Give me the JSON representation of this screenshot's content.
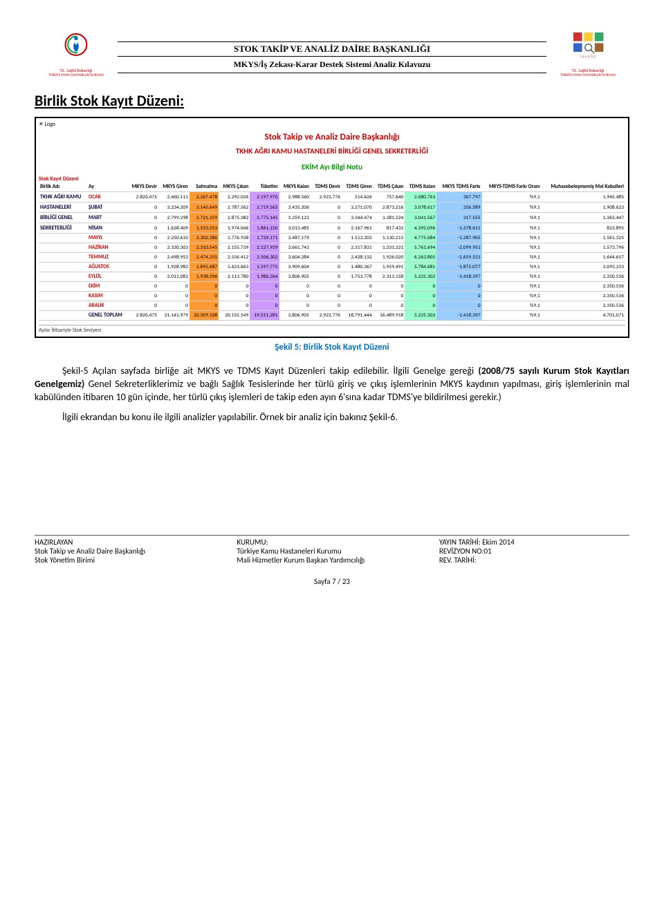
{
  "header": {
    "logo_org_tr": "T.C. Sağlık Bakanlığı",
    "logo_org_sub": "TÜRKİYE KAMU HASTANELERİ KURUMU",
    "line1": "STOK TAKİP VE ANALİZ DAİRE BAŞKANLIĞI",
    "line2": "MKYS/İş Zekası-Karar Destek Sistemi Analiz Kılavuzu"
  },
  "section": {
    "title": "Birlik Stok Kayıt Düzeni:"
  },
  "screenshot": {
    "xlogo": "✕  Logo",
    "title_red": "Stok Takip ve Analiz Daire Başkanlığı",
    "title_sub": "TKHK AĞRI KAMU HASTANELERİ BİRLİĞİ GENEL SEKRETERLİĞİ",
    "title_green": "EKİM Ayı Bilgi Notu",
    "side_label": "Stok Kayıt Düzeni",
    "unit_header": "Birlik Adı",
    "month_header": "Ay",
    "unit_name_lines": [
      "TKHK AĞRI KAMU",
      "HASTANELERİ",
      "BİRLİĞİ GENEL",
      "SEKRETERLİĞİ"
    ],
    "columns": [
      "MKYS Devir",
      "MKYS Giren",
      "Satınalma",
      "MKYS Çıkan",
      "Tüketim",
      "MKYS Kalan",
      "TDMS Devir",
      "TDMS Giren",
      "TDMS Çıkan",
      "TDMS Kalan",
      "MKYS TDMS Farkı",
      "MKYS-TDMS Farkı Oranı",
      "Muhasebeleşmemiş Mal Kabulleri"
    ],
    "highlight_cols": {
      "satinalma": "hl-orange",
      "tuketim": "hl-violet",
      "tdms_kalan": "hl-green",
      "fark": "hl-blue"
    },
    "rows": [
      {
        "month": "OCAK",
        "red": true,
        "cells": [
          "2.820.475",
          "2.460.111",
          "2.267.478",
          "2.292.026",
          "2.197.970",
          "2.988.560",
          "2.923.776",
          "514.626",
          "757.640",
          "2.680.763",
          "307.797",
          "%9,1",
          "1.945.485"
        ]
      },
      {
        "month": "ŞUBAT",
        "cells": [
          "0",
          "3.234.209",
          "3.145.649",
          "2.787.562",
          "2.719.565",
          "3.435.206",
          "0",
          "3.271.070",
          "2.873.216",
          "3.078.617",
          "356.589",
          "%9,1",
          "1.908.623"
        ]
      },
      {
        "month": "MART",
        "cells": [
          "0",
          "2.799.298",
          "2.721.259",
          "2.875.382",
          "2.775.145",
          "3.359.122",
          "0",
          "3.344.474",
          "3.381.524",
          "3.041.567",
          "317.555",
          "%9,1",
          "1.363.447"
        ]
      },
      {
        "month": "NİSAN",
        "cells": [
          "0",
          "1.628.409",
          "1.553.553",
          "1.974.046",
          "1.861.150",
          "3.013.485",
          "0",
          "2.167.961",
          "817.432",
          "4.392.096",
          "-1.378.611",
          "%9,1",
          "823.895"
        ]
      },
      {
        "month": "MAYIS",
        "red": true,
        "cells": [
          "0",
          "2.250.633",
          "2.202.286",
          "1.776.938",
          "1.739.171",
          "3.487.179",
          "0",
          "1.513.203",
          "1.130.215",
          "4.775.084",
          "-1.287.905",
          "%9,1",
          "1.561.325"
        ]
      },
      {
        "month": "HAZİRAN",
        "red": true,
        "cells": [
          "0",
          "2.330.303",
          "2.310.545",
          "2.155.739",
          "2.127.939",
          "3.661.743",
          "0",
          "2.317.831",
          "1.331.221",
          "5.761.694",
          "-2.099.951",
          "%9,1",
          "1.573.796"
        ]
      },
      {
        "month": "TEMMUZ",
        "red": true,
        "cells": [
          "0",
          "2.498.953",
          "2.474.255",
          "2.556.412",
          "2.506.302",
          "3.604.284",
          "0",
          "2.428.132",
          "1.926.020",
          "6.263.805",
          "-2.659.521",
          "%9,1",
          "1.644.617"
        ]
      },
      {
        "month": "AĞUSTOS",
        "red": true,
        "cells": [
          "0",
          "1.928.983",
          "1.895.687",
          "1.623.663",
          "1.597.775",
          "3.909.604",
          "0",
          "1.480.367",
          "1.959.491",
          "5.784.681",
          "-1.875.077",
          "%9,1",
          "2.093.233"
        ]
      },
      {
        "month": "EYLÜL",
        "red": true,
        "cells": [
          "0",
          "2.011.081",
          "1.938.396",
          "2.113.780",
          "1.986.264",
          "3.806.905",
          "0",
          "1.753.778",
          "2.313.158",
          "5.225.302",
          "-1.418.397",
          "%9,1",
          "2.350.536"
        ]
      },
      {
        "month": "EKİM",
        "red": true,
        "cells": [
          "0",
          "0",
          "0",
          "0",
          "0",
          "0",
          "0",
          "0",
          "0",
          "0",
          "0",
          "%9,1",
          "2.350.536"
        ]
      },
      {
        "month": "KASIM",
        "red": true,
        "cells": [
          "0",
          "0",
          "0",
          "0",
          "0",
          "0",
          "0",
          "0",
          "0",
          "0",
          "0",
          "%9,1",
          "2.350.536"
        ]
      },
      {
        "month": "ARALIK",
        "red": true,
        "cells": [
          "0",
          "0",
          "0",
          "0",
          "0",
          "0",
          "0",
          "0",
          "0",
          "0",
          "0",
          "%9,1",
          "2.350.536"
        ]
      },
      {
        "month": "GENEL TOPLAM",
        "cells": [
          "2.820.475",
          "21.141.979",
          "20.509.108",
          "20.155.549",
          "19.511.281",
          "3.806.905",
          "2.923.776",
          "18.791.444",
          "16.489.918",
          "5.225.302",
          "-1.418.397",
          "%9,1",
          "4.701.071"
        ]
      }
    ],
    "bottom_label": "Aylar İtibariyle Stok Seviyesi"
  },
  "caption": "Şekil 5: Birlik Stok Kayıt Düzeni",
  "para1": "Şekil-5 Açılan sayfada birliğe ait MKYS ve TDMS Kayıt Düzenleri takip edilebilir. İlgili Genelge gereği ",
  "para1_bold": "(2008/75 sayılı Kurum Stok Kayıtları Genelgemiz)",
  "para1_cont": " Genel Sekreterliklerimiz ve bağlı Sağlık Tesislerinde her türlü giriş ve çıkış  işlemlerinin MKYS kaydının yapılması,  giriş işlemlerinin mal kabülünden itibaren 10 gün içinde, her türlü çıkış işlemleri de takip   eden ayın 6'sına kadar TDMS'ye bildirilmesi gerekir.)",
  "para2": "İlgili ekrandan bu konu ile ilgili analizler yapılabilir. Örnek bir analiz için bakınız Şekil-6.",
  "footer": {
    "col1": [
      "HAZIRLAYAN",
      "Stok Takip ve Analiz Daire Başkanlığı",
      "Stok Yönetim Birimi"
    ],
    "col2": [
      "KURUMU:",
      "Türkiye Kamu Hastaneleri Kurumu",
      "Mali Hizmetler Kurum Başkan Yardımcılığı"
    ],
    "col3": [
      "YAYIN TARİHİ: Ekim 2014",
      "REVİZYON NO:01",
      "REV. TARİHİ:"
    ],
    "page": "Sayfa 7 / 23"
  }
}
